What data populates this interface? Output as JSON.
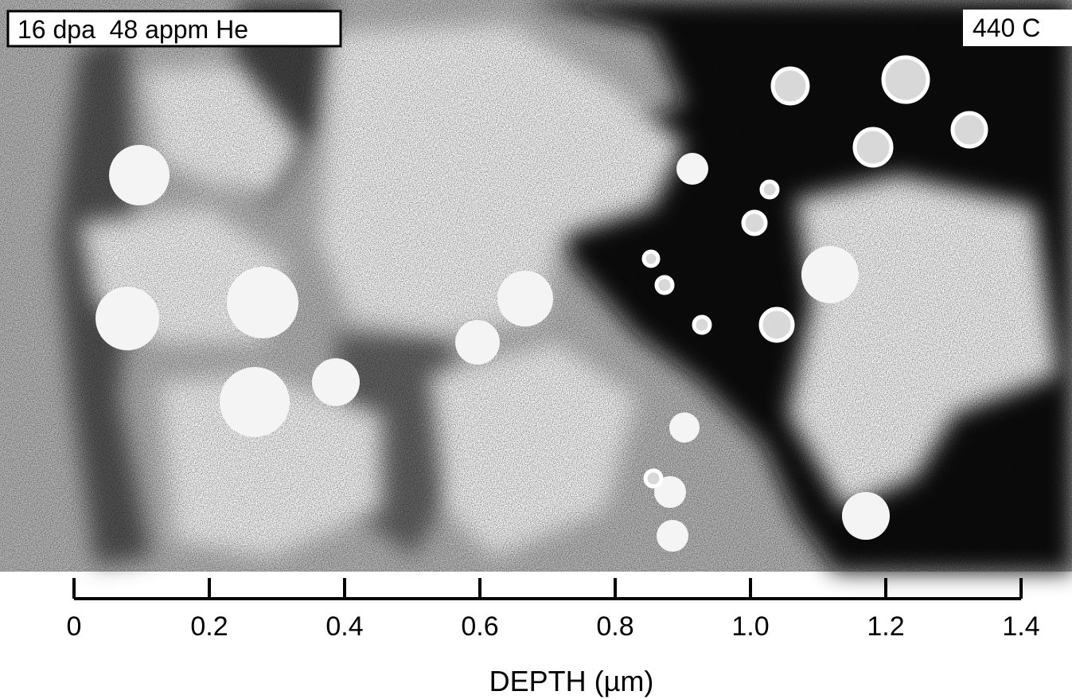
{
  "labels": {
    "conditions": "16 dpa  48 appm He",
    "temperature": "440 C"
  },
  "scale": {
    "label": "DEPTH (µm)",
    "range": [
      0,
      1.4
    ],
    "ticks": [
      0,
      0.2,
      0.4,
      0.6,
      0.8,
      {
        "value": 1,
        "label": "1.0"
      },
      1.2,
      1.4
    ]
  }
}
